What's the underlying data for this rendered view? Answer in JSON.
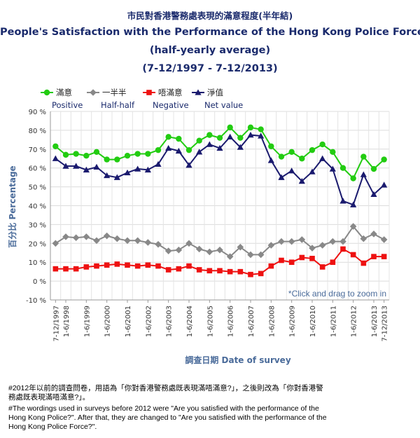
{
  "titles": {
    "zh": "市民對香港警務處表現的滿意程度(半年結)",
    "en": "People's Satisfaction with the Performance of the Hong Kong Police Force",
    "sub": "(half-yearly average)",
    "period": "(7-12/1997 - 7-12/2013)"
  },
  "chart_data": {
    "type": "line",
    "ylabel": "百分比 Percentage",
    "xlabel": "調查日期 Date of survey",
    "ylim": [
      -10,
      90
    ],
    "y_ticks": [
      "-10 %",
      "0 %",
      "10 %",
      "20 %",
      "30 %",
      "40 %",
      "50 %",
      "60 %",
      "70 %",
      "80 %",
      "90 %"
    ],
    "grid": true,
    "legend_position": "top",
    "zoom_hint": "*Click and drag to zoom in",
    "x": [
      "7-12/1997",
      "1-6/1998",
      "7-12/1998",
      "1-6/1999",
      "7-12/1999",
      "1-6/2000",
      "7-12/2000",
      "1-6/2001",
      "7-12/2001",
      "1-6/2002",
      "7-12/2002",
      "1-6/2003",
      "7-12/2003",
      "1-6/2004",
      "7-12/2004",
      "1-6/2005",
      "7-12/2005",
      "1-6/2006",
      "7-12/2006",
      "1-6/2007",
      "7-12/2007",
      "1-6/2008",
      "7-12/2008",
      "1-6/2009",
      "7-12/2009",
      "1-6/2010",
      "7-12/2010",
      "1-6/2011",
      "7-12/2011",
      "1-6/2012",
      "7-12/2012",
      "1-6/2013",
      "7-12/2013"
    ],
    "x_tick_labels": [
      "7-12/1997",
      "1-6/1998",
      "1-6/1999",
      "1-6/2000",
      "1-6/2001",
      "1-6/2002",
      "1-6/2003",
      "1-6/2004",
      "1-6/2005",
      "1-6/2006",
      "1-6/2007",
      "1-6/2008",
      "1-6/2009",
      "1-6/2010",
      "1-6/2011",
      "1-6/2012",
      "1-6/2013",
      "7-12/2013"
    ],
    "series": [
      {
        "name": "滿意",
        "name_en": "Positive",
        "color": "#22cc11",
        "marker": "circle",
        "values": [
          71.5,
          67,
          67.5,
          66.5,
          68.5,
          64.5,
          64.5,
          66.5,
          67.5,
          67.5,
          69.5,
          76.5,
          75.5,
          69.5,
          74.5,
          77.5,
          76,
          81.5,
          76,
          81.5,
          80.5,
          71.5,
          66,
          68.5,
          65,
          69.5,
          72.5,
          68.5,
          60,
          54.5,
          66,
          59.5,
          64.5
        ]
      },
      {
        "name": "一半半",
        "name_en": "Half-half",
        "color": "#888888",
        "marker": "diamond",
        "values": [
          20,
          23.5,
          23,
          23.5,
          21.5,
          24,
          22.5,
          21.5,
          21.5,
          20.5,
          19.5,
          16,
          16.5,
          20,
          17,
          15.5,
          16.5,
          13,
          18,
          14,
          14,
          19,
          21,
          21,
          22,
          17.5,
          19,
          21,
          21,
          29,
          22.5,
          25,
          22
        ]
      },
      {
        "name": "唔滿意",
        "name_en": "Negative",
        "color": "#ee1111",
        "marker": "square",
        "values": [
          6.5,
          6.5,
          6.5,
          7.5,
          8,
          8.5,
          9,
          8.5,
          8,
          8.5,
          8,
          6,
          6.5,
          8,
          6,
          5.5,
          5.5,
          5,
          5,
          3.5,
          4,
          8,
          11,
          10,
          12.5,
          12,
          7.5,
          10,
          17,
          14,
          9.5,
          13,
          13
        ]
      },
      {
        "name": "淨值",
        "name_en": "Net value",
        "color": "#1a1a6e",
        "marker": "triangle",
        "values": [
          65,
          61,
          61,
          59,
          60.5,
          56,
          55,
          57.5,
          59.5,
          59,
          62,
          70.5,
          69,
          61.5,
          68.5,
          72.5,
          70.5,
          76.5,
          71,
          77.5,
          77,
          64,
          55,
          58.5,
          53,
          58,
          65,
          59.5,
          42.5,
          40.5,
          56.5,
          46,
          51
        ]
      }
    ]
  },
  "notes": {
    "zh_1": "#2012年以前的調查問卷，用語為「你對香港警務處既表現滿唔滿意?」，之後則改為「你對香港警",
    "zh_2": "務處既表現滿唔滿意?」。",
    "en_1": "#The wordings used in surveys before 2012 were \"Are you satisfied with the performance of the",
    "en_2": "Hong Kong Police?\". After that, they are changed to \"Are you satisfied with the performance of the",
    "en_3": "Hong Kong Police Force?\"."
  }
}
